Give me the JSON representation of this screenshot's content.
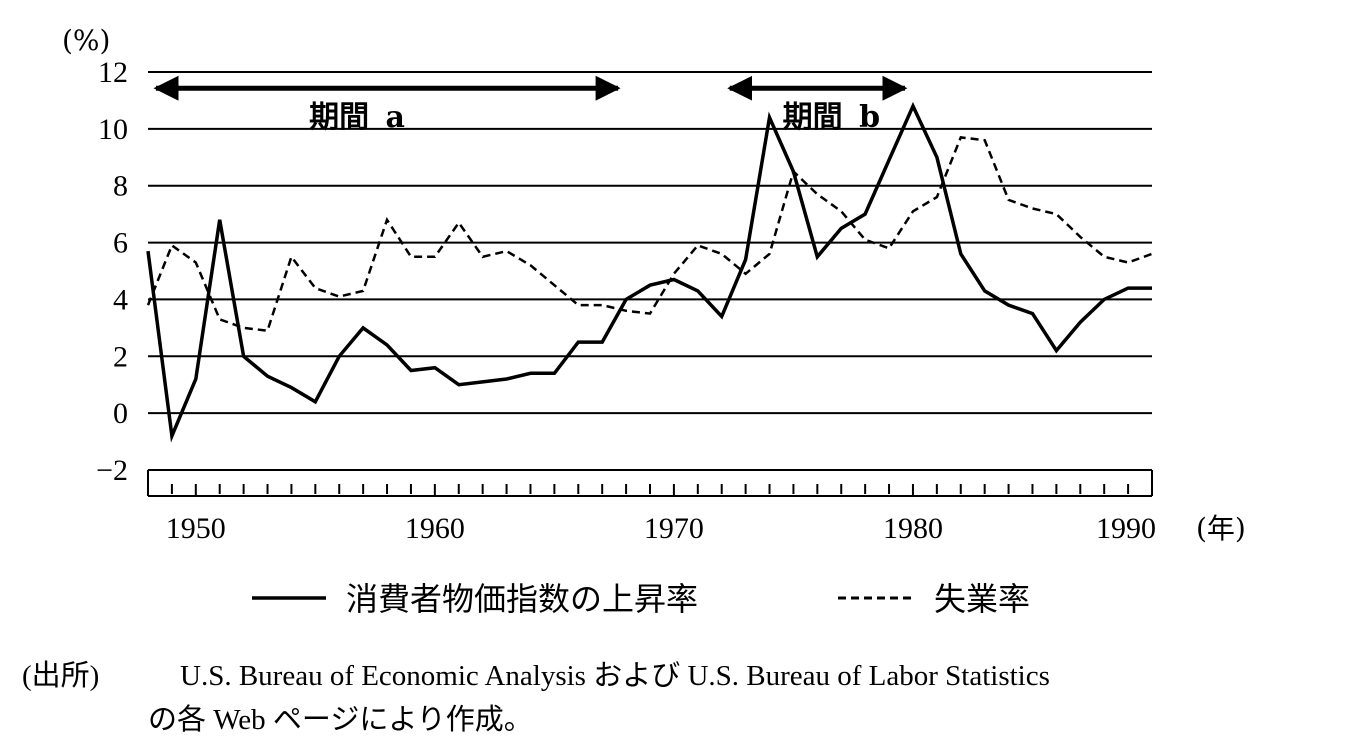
{
  "chart_data": {
    "type": "line",
    "y_unit_label": "(%)",
    "x_unit_label": "(年)",
    "ylim": [
      -2,
      12
    ],
    "yticks": [
      -2,
      0,
      2,
      4,
      6,
      8,
      10,
      12
    ],
    "ytick_labels": [
      "−2",
      "0",
      "2",
      "4",
      "6",
      "8",
      "10",
      "12"
    ],
    "xlim": [
      1948,
      1990
    ],
    "xticks_labeled": [
      1950,
      1960,
      1970,
      1980,
      1990
    ],
    "grid": "horizontal",
    "series": [
      {
        "name": "消費者物価指数の上昇率",
        "line_style": "solid",
        "x": [
          1948,
          1949,
          1950,
          1951,
          1952,
          1953,
          1954,
          1955,
          1956,
          1957,
          1958,
          1959,
          1960,
          1961,
          1962,
          1963,
          1964,
          1965,
          1966,
          1967,
          1968,
          1969,
          1970,
          1971,
          1972,
          1973,
          1974,
          1975,
          1976,
          1977,
          1978,
          1979,
          1980,
          1981,
          1982,
          1983,
          1984,
          1985,
          1986,
          1987,
          1988,
          1989,
          1990
        ],
        "values": [
          5.7,
          -0.8,
          1.2,
          6.8,
          2.0,
          1.3,
          0.9,
          0.4,
          2.0,
          3.0,
          2.4,
          1.5,
          1.6,
          1.0,
          1.1,
          1.2,
          1.4,
          1.4,
          2.5,
          2.5,
          4.0,
          4.5,
          4.7,
          4.3,
          3.4,
          5.4,
          10.4,
          8.5,
          5.5,
          6.5,
          7.0,
          8.9,
          10.8,
          9.0,
          5.6,
          4.3,
          3.8,
          3.5,
          2.2,
          3.2,
          4.0,
          4.4,
          4.4
        ]
      },
      {
        "name": "失業率",
        "line_style": "dashed",
        "x": [
          1948,
          1949,
          1950,
          1951,
          1952,
          1953,
          1954,
          1955,
          1956,
          1957,
          1958,
          1959,
          1960,
          1961,
          1962,
          1963,
          1964,
          1965,
          1966,
          1967,
          1968,
          1969,
          1970,
          1971,
          1972,
          1973,
          1974,
          1975,
          1976,
          1977,
          1978,
          1979,
          1980,
          1981,
          1982,
          1983,
          1984,
          1985,
          1986,
          1987,
          1988,
          1989,
          1990
        ],
        "values": [
          3.8,
          5.9,
          5.3,
          3.3,
          3.0,
          2.9,
          5.5,
          4.4,
          4.1,
          4.3,
          6.8,
          5.5,
          5.5,
          6.7,
          5.5,
          5.7,
          5.2,
          4.5,
          3.8,
          3.8,
          3.6,
          3.5,
          4.9,
          5.9,
          5.6,
          4.9,
          5.6,
          8.5,
          7.7,
          7.1,
          6.1,
          5.8,
          7.1,
          7.6,
          9.7,
          9.6,
          7.5,
          7.2,
          7.0,
          6.2,
          5.5,
          5.3,
          5.6
        ]
      }
    ],
    "annotations": [
      {
        "label_prefix": "期間",
        "label_letter": "a",
        "start": 1948,
        "end": 1968,
        "y": 11.5
      },
      {
        "label_prefix": "期間",
        "label_letter": "b",
        "start": 1972,
        "end": 1980,
        "y": 11.5
      }
    ]
  },
  "source": {
    "prefix": "(出所)",
    "line1": "U.S. Bureau of Economic Analysis および U.S. Bureau of Labor Statistics",
    "line2": "の各 Web ページにより作成。"
  },
  "colors": {
    "line": "#000000",
    "grid": "#000000",
    "background": "#ffffff"
  }
}
